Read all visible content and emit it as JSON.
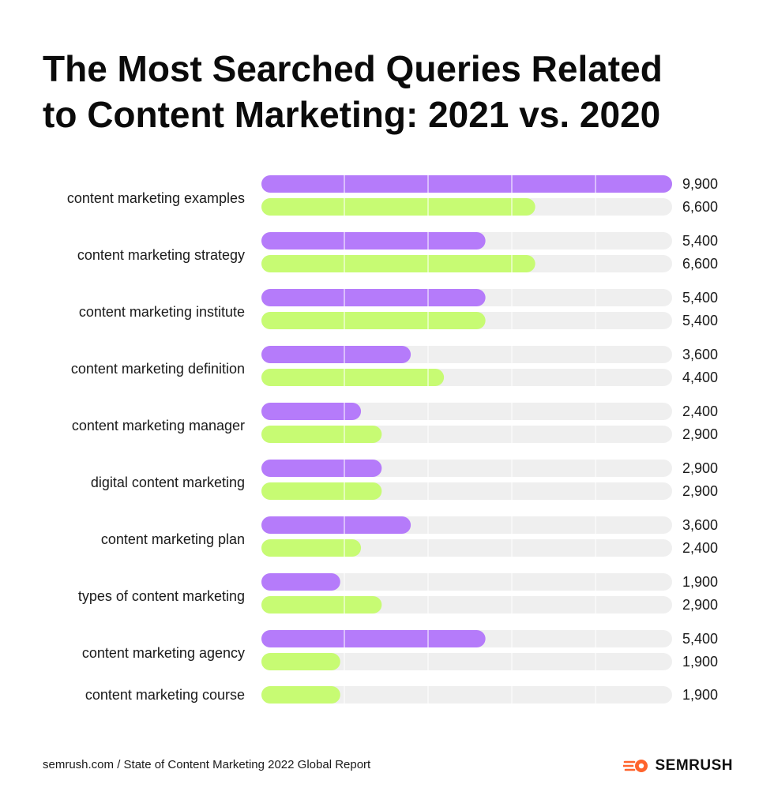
{
  "header": {
    "title_line1": "The Most Searched Queries Related",
    "title_line2": "to Content Marketing: 2021 vs. 2020"
  },
  "footer": {
    "source": "semrush.com / State of Content Marketing 2022 Global Report",
    "brand": "SEMRUSH"
  },
  "colors": {
    "series_2021": "#b57bfa",
    "series_2020": "#c7fb73",
    "track": "#efefef",
    "brand_accent": "#ff642d"
  },
  "icons": {
    "brand": "semrush-fire-icon"
  },
  "chart_data": {
    "type": "bar",
    "orientation": "horizontal",
    "title": "The Most Searched Queries Related to Content Marketing: 2021 vs. 2020",
    "xlim": [
      0,
      9900
    ],
    "grid": true,
    "categories": [
      "content marketing examples",
      "content marketing strategy",
      "content marketing institute",
      "content marketing definition",
      "content marketing manager",
      "digital content marketing",
      "content marketing plan",
      "types of content marketing",
      "content marketing agency",
      "content marketing course"
    ],
    "series": [
      {
        "values": [
          9900,
          5400,
          5400,
          3600,
          2400,
          2900,
          3600,
          1900,
          5400,
          null
        ],
        "labels": [
          "9,900",
          "5,400",
          "5,400",
          "3,600",
          "2,400",
          "2,900",
          "3,600",
          "1,900",
          "5,400",
          null
        ]
      },
      {
        "values": [
          6600,
          6600,
          5400,
          4400,
          2900,
          2900,
          2400,
          2900,
          1900,
          1900
        ],
        "labels": [
          "6,600",
          "6,600",
          "5,400",
          "4,400",
          "2,900",
          "2,900",
          "2,400",
          "2,900",
          "1,900",
          "1,900"
        ]
      }
    ]
  }
}
